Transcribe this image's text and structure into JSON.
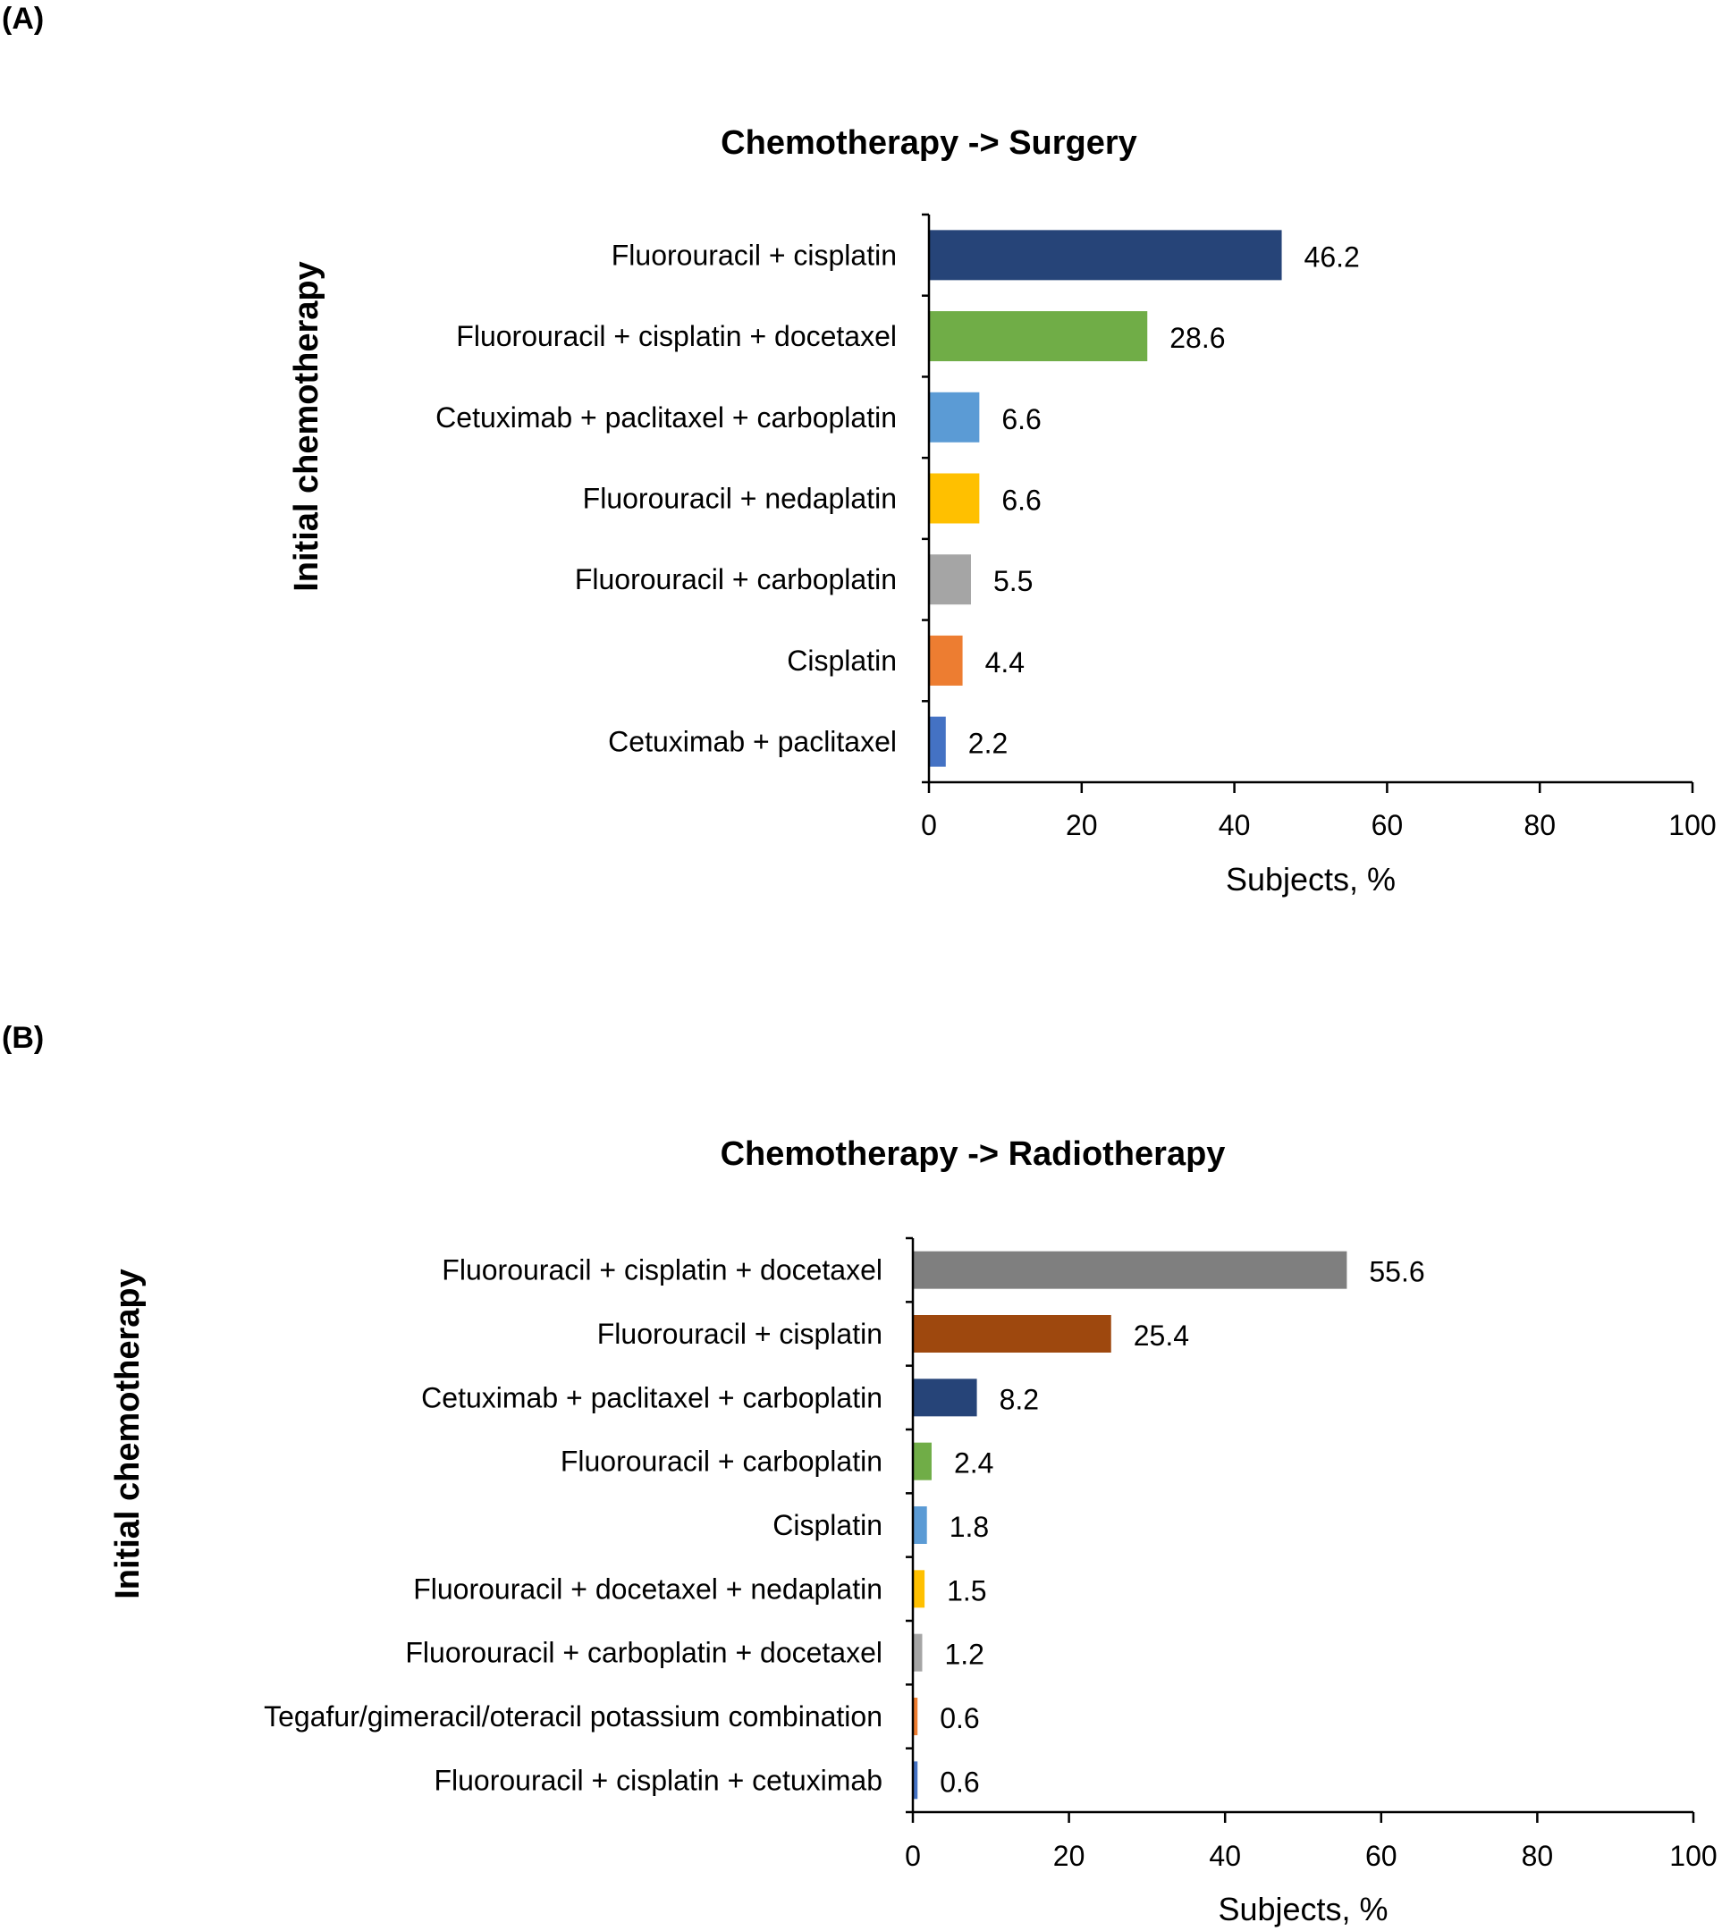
{
  "panels": [
    {
      "label": "(A)"
    },
    {
      "label": "(B)"
    }
  ],
  "chart_data": [
    {
      "type": "bar",
      "orientation": "horizontal",
      "panel": "(A)",
      "title": "Chemotherapy -> Surgery",
      "xlabel": "Subjects, %",
      "ylabel": "Initial chemotherapy",
      "xlim": [
        0,
        100
      ],
      "xticks": [
        0,
        20,
        40,
        60,
        80,
        100
      ],
      "grid": false,
      "legend": "none",
      "categories": [
        "Fluorouracil + cisplatin",
        "Fluorouracil + cisplatin + docetaxel",
        "Cetuximab + paclitaxel + carboplatin",
        "Fluorouracil + nedaplatin",
        "Fluorouracil + carboplatin",
        "Cisplatin",
        "Cetuximab + paclitaxel"
      ],
      "values": [
        46.2,
        28.6,
        6.6,
        6.6,
        5.5,
        4.4,
        2.2
      ],
      "value_labels": [
        "46.2",
        "28.6",
        "6.6",
        "6.6",
        "5.5",
        "4.4",
        "2.2"
      ],
      "colors": [
        "#264478",
        "#70AD47",
        "#5B9BD5",
        "#FFC000",
        "#A5A5A5",
        "#ED7D31",
        "#4472C4"
      ]
    },
    {
      "type": "bar",
      "orientation": "horizontal",
      "panel": "(B)",
      "title": "Chemotherapy -> Radiotherapy",
      "xlabel": "Subjects, %",
      "ylabel": "Initial chemotherapy",
      "xlim": [
        0,
        100
      ],
      "xticks": [
        0,
        20,
        40,
        60,
        80,
        100
      ],
      "grid": false,
      "legend": "none",
      "categories": [
        "Fluorouracil + cisplatin + docetaxel",
        "Fluorouracil + cisplatin",
        "Cetuximab + paclitaxel + carboplatin",
        "Fluorouracil + carboplatin",
        "Cisplatin",
        "Fluorouracil + docetaxel + nedaplatin",
        "Fluorouracil + carboplatin + docetaxel",
        "Tegafur/gimeracil/oteracil potassium combination",
        "Fluorouracil + cisplatin + cetuximab"
      ],
      "values": [
        55.6,
        25.4,
        8.2,
        2.4,
        1.8,
        1.5,
        1.2,
        0.6,
        0.6
      ],
      "value_labels": [
        "55.6",
        "25.4",
        "8.2",
        "2.4",
        "1.8",
        "1.5",
        "1.2",
        "0.6",
        "0.6"
      ],
      "colors": [
        "#7F7F7F",
        "#9E480E",
        "#264478",
        "#70AD47",
        "#5B9BD5",
        "#FFC000",
        "#A5A5A5",
        "#ED7D31",
        "#4472C4"
      ]
    }
  ]
}
